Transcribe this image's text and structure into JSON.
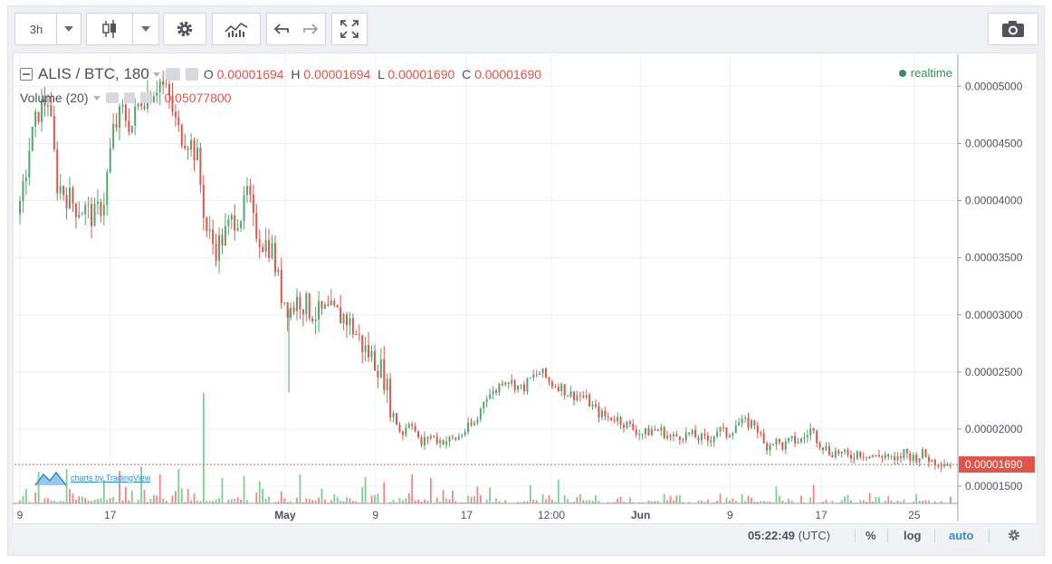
{
  "toolbar": {
    "interval": "3h",
    "interval_dropdown_icon": "chevron-down-icon",
    "chart_type_icon": "candlestick-icon",
    "settings_icon": "gear-icon",
    "indicators_icon": "indicators-icon",
    "undo_icon": "undo-icon",
    "redo_icon": "redo-icon",
    "fullscreen_icon": "fullscreen-icon",
    "snapshot_icon": "camera-icon"
  },
  "legend": {
    "symbol": "ALIS / BTC, 180",
    "open_label": "O",
    "open": "0.00001694",
    "high_label": "H",
    "high": "0.00001694",
    "low_label": "L",
    "low": "0.00001690",
    "close_label": "C",
    "close": "0.00001690",
    "volume_label": "Volume (20)",
    "volume_value": "0.05077800",
    "realtime": "realtime"
  },
  "watermark": "charts by TradingView",
  "status": {
    "time": "05:22:49",
    "tz": "(UTC)",
    "percent": "%",
    "log": "log",
    "auto": "auto",
    "settings_icon": "gear-icon"
  },
  "colors": {
    "up": "#53a66c",
    "down": "#e0554b",
    "vol_up": "#7ccf8f",
    "vol_down": "#f28686",
    "last_price": "#e0554b",
    "realtime": "#3a8f5f",
    "auto_active": "#2b8fd6"
  },
  "chart_data": {
    "type": "candlestick",
    "y_axis": {
      "ticks": [
        "0.00005000",
        "0.00004500",
        "0.00004000",
        "0.00003500",
        "0.00003000",
        "0.00002500",
        "0.00002000",
        "0.00001500"
      ],
      "tick_values": [
        5e-05,
        4.5e-05,
        4e-05,
        3.5e-05,
        3e-05,
        2.5e-05,
        2e-05,
        1.5e-05
      ],
      "range": [
        1.35e-05,
        5.28e-05
      ],
      "last_price_label": "0.00001690",
      "last_price": 1.69e-05
    },
    "x_axis": {
      "ticks": [
        {
          "label": "9",
          "bold": false,
          "pos": 0.0
        },
        {
          "label": "17",
          "bold": false,
          "pos": 0.097
        },
        {
          "label": "May",
          "bold": true,
          "pos": 0.285
        },
        {
          "label": "9",
          "bold": false,
          "pos": 0.382
        },
        {
          "label": "17",
          "bold": false,
          "pos": 0.48
        },
        {
          "label": "12:00",
          "bold": false,
          "pos": 0.571
        },
        {
          "label": "Jun",
          "bold": true,
          "pos": 0.667
        },
        {
          "label": "9",
          "bold": false,
          "pos": 0.763
        },
        {
          "label": "17",
          "bold": false,
          "pos": 0.861
        },
        {
          "label": "25",
          "bold": false,
          "pos": 0.961
        }
      ]
    },
    "price_path": [
      [
        0.0,
        3.88e-05
      ],
      [
        0.01,
        4.45e-05
      ],
      [
        0.02,
        4.78e-05
      ],
      [
        0.03,
        4.9e-05
      ],
      [
        0.04,
        4.15e-05
      ],
      [
        0.05,
        4.05e-05
      ],
      [
        0.06,
        3.95e-05
      ],
      [
        0.07,
        3.92e-05
      ],
      [
        0.08,
        3.85e-05
      ],
      [
        0.09,
        4e-05
      ],
      [
        0.1,
        4.6e-05
      ],
      [
        0.11,
        4.78e-05
      ],
      [
        0.12,
        4.65e-05
      ],
      [
        0.13,
        4.9e-05
      ],
      [
        0.14,
        4.95e-05
      ],
      [
        0.15,
        5.05e-05
      ],
      [
        0.16,
        4.9e-05
      ],
      [
        0.17,
        4.6e-05
      ],
      [
        0.18,
        4.55e-05
      ],
      [
        0.19,
        4.4e-05
      ],
      [
        0.2,
        3.75e-05
      ],
      [
        0.21,
        3.58e-05
      ],
      [
        0.22,
        3.7e-05
      ],
      [
        0.23,
        3.85e-05
      ],
      [
        0.24,
        3.9e-05
      ],
      [
        0.245,
        4.1e-05
      ],
      [
        0.25,
        3.8e-05
      ],
      [
        0.26,
        3.65e-05
      ],
      [
        0.27,
        3.6e-05
      ],
      [
        0.28,
        3.2e-05
      ],
      [
        0.29,
        3.05e-05
      ],
      [
        0.3,
        3.15e-05
      ],
      [
        0.31,
        3.05e-05
      ],
      [
        0.32,
        3e-05
      ],
      [
        0.33,
        3.02e-05
      ],
      [
        0.34,
        3e-05
      ],
      [
        0.35,
        2.98e-05
      ],
      [
        0.36,
        2.85e-05
      ],
      [
        0.37,
        2.7e-05
      ],
      [
        0.38,
        2.62e-05
      ],
      [
        0.39,
        2.5e-05
      ],
      [
        0.4,
        2.15e-05
      ],
      [
        0.41,
        1.95e-05
      ],
      [
        0.42,
        2.1e-05
      ],
      [
        0.43,
        1.85e-05
      ],
      [
        0.44,
        1.95e-05
      ],
      [
        0.45,
        1.9e-05
      ],
      [
        0.46,
        1.9e-05
      ],
      [
        0.47,
        1.92e-05
      ],
      [
        0.48,
        2e-05
      ],
      [
        0.49,
        2.05e-05
      ],
      [
        0.5,
        2.3e-05
      ],
      [
        0.51,
        2.32e-05
      ],
      [
        0.52,
        2.45e-05
      ],
      [
        0.53,
        2.4e-05
      ],
      [
        0.54,
        2.35e-05
      ],
      [
        0.55,
        2.45e-05
      ],
      [
        0.56,
        2.5e-05
      ],
      [
        0.57,
        2.4e-05
      ],
      [
        0.58,
        2.38e-05
      ],
      [
        0.59,
        2.3e-05
      ],
      [
        0.6,
        2.3e-05
      ],
      [
        0.61,
        2.25e-05
      ],
      [
        0.62,
        2.15e-05
      ],
      [
        0.63,
        2.1e-05
      ],
      [
        0.64,
        2.1e-05
      ],
      [
        0.65,
        2.05e-05
      ],
      [
        0.66,
        2e-05
      ],
      [
        0.67,
        1.95e-05
      ],
      [
        0.68,
        2e-05
      ],
      [
        0.69,
        1.98e-05
      ],
      [
        0.7,
        1.92e-05
      ],
      [
        0.71,
        1.95e-05
      ],
      [
        0.72,
        1.95e-05
      ],
      [
        0.73,
        1.92e-05
      ],
      [
        0.74,
        1.9e-05
      ],
      [
        0.75,
        2e-05
      ],
      [
        0.76,
        1.95e-05
      ],
      [
        0.77,
        2.05e-05
      ],
      [
        0.78,
        2.05e-05
      ],
      [
        0.79,
        2.05e-05
      ],
      [
        0.8,
        1.85e-05
      ],
      [
        0.81,
        1.9e-05
      ],
      [
        0.82,
        1.85e-05
      ],
      [
        0.83,
        1.9e-05
      ],
      [
        0.84,
        1.9e-05
      ],
      [
        0.85,
        2e-05
      ],
      [
        0.86,
        1.88e-05
      ],
      [
        0.87,
        1.8e-05
      ],
      [
        0.88,
        1.8e-05
      ],
      [
        0.89,
        1.75e-05
      ],
      [
        0.9,
        1.8e-05
      ],
      [
        0.91,
        1.78e-05
      ],
      [
        0.92,
        1.75e-05
      ],
      [
        0.93,
        1.78e-05
      ],
      [
        0.94,
        1.7e-05
      ],
      [
        0.95,
        1.8e-05
      ],
      [
        0.96,
        1.75e-05
      ],
      [
        0.97,
        1.78e-05
      ],
      [
        0.98,
        1.72e-05
      ],
      [
        0.99,
        1.72e-05
      ],
      [
        1.0,
        1.69e-05
      ]
    ],
    "volume_scale_note": "",
    "volume_spikes": [
      [
        0.02,
        0.6
      ],
      [
        0.05,
        0.65
      ],
      [
        0.09,
        0.45
      ],
      [
        0.105,
        0.62
      ],
      [
        0.13,
        0.7
      ],
      [
        0.15,
        0.55
      ],
      [
        0.17,
        0.65
      ],
      [
        0.195,
        0.42
      ],
      [
        0.215,
        0.48
      ],
      [
        0.24,
        0.52
      ],
      [
        0.255,
        0.42
      ],
      [
        0.3,
        0.55
      ],
      [
        0.37,
        0.5
      ],
      [
        0.39,
        0.4
      ],
      [
        0.42,
        0.55
      ],
      [
        0.44,
        0.48
      ],
      [
        0.49,
        0.32
      ],
      [
        0.545,
        0.35
      ],
      [
        0.575,
        0.45
      ],
      [
        0.69,
        0.18
      ],
      [
        0.81,
        0.32
      ],
      [
        0.85,
        0.35
      ],
      [
        0.91,
        0.2
      ],
      [
        0.96,
        0.18
      ]
    ],
    "big_volume": [
      [
        0.195,
        1.0
      ]
    ]
  }
}
